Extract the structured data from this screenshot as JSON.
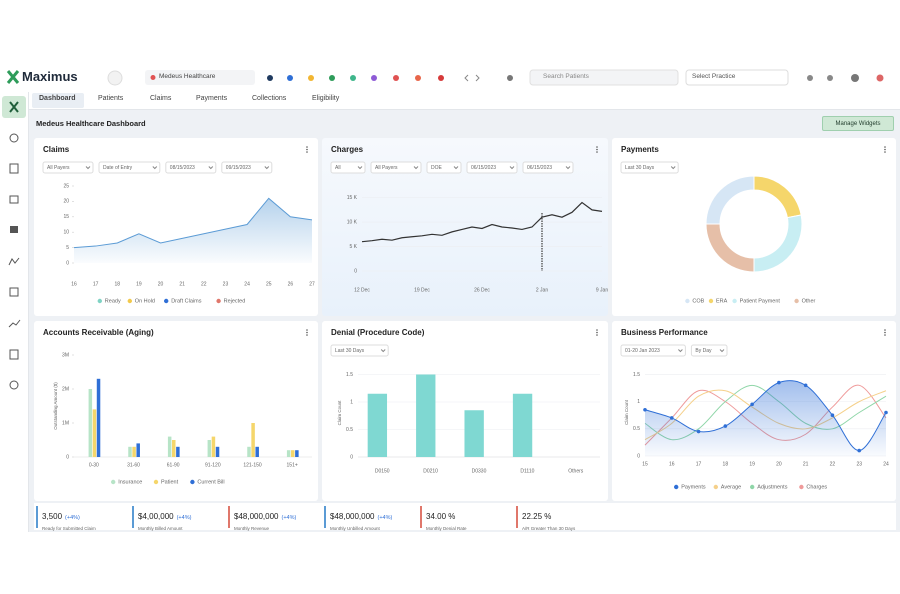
{
  "app": {
    "logo": "Maximus",
    "tab": "Medeus Healthcare",
    "search": "Search Patients",
    "practice": "Select Practice"
  },
  "nav": [
    "Dashboard",
    "Patients",
    "Claims",
    "Payments",
    "Collections",
    "Eligibility"
  ],
  "header": {
    "title": "Medeus Healthcare Dashboard",
    "button": "Manage Widgets"
  },
  "widgets": {
    "claims": {
      "type": "line",
      "title": "Claims",
      "filters": [
        "All Payers",
        "Date of Entry",
        "08/15/2023",
        "09/15/2023"
      ],
      "categories": [
        "16",
        "17",
        "18",
        "19",
        "20",
        "21",
        "22",
        "23",
        "24",
        "25",
        "26",
        "27"
      ],
      "values": [
        5,
        5.5,
        6.5,
        9.5,
        6.5,
        8,
        9.5,
        11,
        12.5,
        21,
        15,
        14
      ],
      "color": "#5b9bd5",
      "ylim": [
        0,
        25
      ],
      "yticks": [
        0,
        5,
        10,
        15,
        20,
        25
      ],
      "legend": [
        {
          "name": "Ready",
          "color": "#7fd3c4"
        },
        {
          "name": "On Hold",
          "color": "#f2c94c"
        },
        {
          "name": "Draft Claims",
          "color": "#2f6fd6"
        },
        {
          "name": "Rejected",
          "color": "#e0776b"
        }
      ]
    },
    "charges": {
      "type": "line",
      "title": "Charges",
      "filters": [
        "All",
        "All Payers",
        "DOE",
        "06/15/2023",
        "06/15/2023"
      ],
      "categories": [
        "12 Dec",
        null,
        null,
        null,
        null,
        null,
        "19 Dec",
        null,
        null,
        null,
        null,
        null,
        "26 Dec",
        null,
        null,
        null,
        null,
        null,
        "2 Jan",
        null,
        null,
        null,
        null,
        null,
        "9 Jan"
      ],
      "values": [
        6000,
        6200,
        6500,
        6300,
        6800,
        7000,
        7200,
        7500,
        7300,
        8000,
        8500,
        9000,
        8700,
        9500,
        9000,
        8800,
        8500,
        9000,
        11000,
        11500,
        11000,
        12000,
        14000,
        12500,
        12200
      ],
      "color": "#333333",
      "ylim": [
        0,
        18000
      ],
      "yticks": [
        0,
        {
          "value": 5000,
          "label": "5 K"
        },
        {
          "value": 10000,
          "label": "10 K"
        },
        {
          "value": 15000,
          "label": "15 K"
        }
      ]
    },
    "payments": {
      "type": "pie",
      "title": "Payments",
      "filters": [
        "Last 30 Days"
      ],
      "categories": [
        "COB",
        "ERA",
        "Patient Payment",
        "Other"
      ],
      "values": [
        25,
        22,
        28,
        25
      ],
      "colors": [
        "#d6e6f5",
        "#f5d66b",
        "#c8eef3",
        "#e6bfa8"
      ]
    },
    "aging": {
      "type": "bar",
      "title": "Accounts Receivable (Aging)",
      "y_label": "Outstanding Amount ($)",
      "categories": [
        "0-30",
        "31-60",
        "61-90",
        "91-120",
        "121-150",
        "151+"
      ],
      "series": [
        {
          "name": "Insurance",
          "color": "#b7e4c7",
          "values": [
            2000000,
            300000,
            600000,
            500000,
            300000,
            200000
          ]
        },
        {
          "name": "Patient",
          "color": "#f5d66b",
          "values": [
            1400000,
            300000,
            500000,
            600000,
            1000000,
            200000
          ]
        },
        {
          "name": "Current Bill",
          "color": "#2f6fd6",
          "values": [
            2300000,
            400000,
            300000,
            300000,
            300000,
            200000
          ]
        }
      ],
      "ylim": [
        0,
        3000000
      ],
      "yticks": [
        0,
        {
          "value": 1000000,
          "label": "1M"
        },
        {
          "value": 2000000,
          "label": "2M"
        },
        {
          "value": 3000000,
          "label": "3M"
        }
      ]
    },
    "denial": {
      "type": "bar",
      "title": "Denial (Procedure Code)",
      "filters": [
        "Last 30 Days"
      ],
      "y_label": "Claim Count",
      "categories": [
        "D0150",
        "D0210",
        "D0330",
        "D1110",
        "Others"
      ],
      "values": [
        1.15,
        1.5,
        0.85,
        1.15,
        null
      ],
      "color": "#7fd8d2",
      "ylim": [
        0,
        1.6
      ],
      "yticks": [
        0,
        0.5,
        1,
        1.5
      ]
    },
    "performance": {
      "type": "line",
      "title": "Business Performance",
      "filters": [
        "01-20 Jan 2023",
        "By Day"
      ],
      "y_label": "Claim Count",
      "categories": [
        "15",
        "16",
        "17",
        "18",
        "19",
        "20",
        "21",
        "22",
        "23",
        "24"
      ],
      "series": [
        {
          "name": "Payments",
          "color": "#2f6fd6",
          "values": [
            0.85,
            0.7,
            0.45,
            0.55,
            0.95,
            1.35,
            1.3,
            0.75,
            0.1,
            0.8
          ]
        },
        {
          "name": "Average",
          "color": "#f5d08a",
          "values": [
            0.3,
            0.6,
            1.1,
            1.2,
            0.9,
            0.6,
            0.5,
            0.7,
            1.0,
            1.2
          ]
        },
        {
          "name": "Adjustments",
          "color": "#8fd6a8",
          "values": [
            0.6,
            0.3,
            0.5,
            1.0,
            1.3,
            1.0,
            0.6,
            0.5,
            0.8,
            1.1
          ]
        },
        {
          "name": "Charges",
          "color": "#ef9a9a",
          "values": [
            0.2,
            0.7,
            1.2,
            1.0,
            0.6,
            0.3,
            0.4,
            0.9,
            1.3,
            0.7
          ]
        }
      ],
      "ylim": [
        0,
        1.6
      ],
      "yticks": [
        0,
        0.5,
        1,
        1.5
      ]
    }
  },
  "stats": [
    {
      "value": "3,500",
      "badge": "(+4%)",
      "label": "Ready for Submitted Claim"
    },
    {
      "value": "$4,00,000",
      "badge": "(+4%)",
      "label": "Monthly Billed Amount"
    },
    {
      "value": "$48,000,000",
      "badge": "(+4%)",
      "label": "Monthly Revenue"
    },
    {
      "value": "$48,000,000",
      "badge": "(+4%)",
      "label": "Monthly Unbilled Amount"
    },
    {
      "value": "34.00 %",
      "label": "Monthly Denial Rate"
    },
    {
      "value": "22.25 %",
      "label": "A/R Greater Than 30 Days"
    }
  ]
}
